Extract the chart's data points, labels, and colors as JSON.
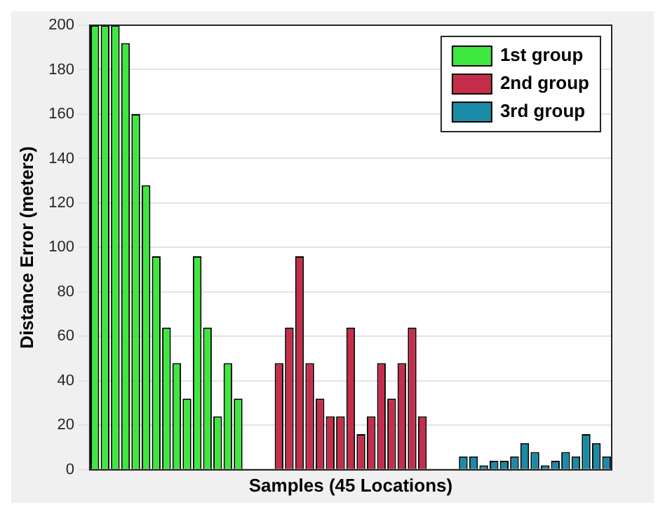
{
  "chart_data": {
    "type": "bar",
    "xlabel": "Samples (45 Locations)",
    "ylabel": "Distance Error (meters)",
    "categories": [
      null,
      null,
      null,
      null,
      null,
      null,
      null,
      null,
      null,
      null,
      null,
      null,
      null,
      null,
      null,
      null,
      null,
      null,
      null,
      null,
      null,
      null,
      null,
      null,
      null,
      null,
      null,
      null,
      null,
      null,
      null,
      null,
      null,
      null,
      null,
      null,
      null,
      null,
      null,
      null,
      null,
      null,
      null,
      null,
      null,
      null,
      null,
      null,
      null,
      null,
      null
    ],
    "series": [
      {
        "name": "1st group",
        "color": "#3ee83e",
        "values": [
          200,
          200,
          200,
          192,
          160,
          128,
          96,
          64,
          48,
          32,
          96,
          64,
          24,
          48,
          32,
          null,
          null,
          null,
          null,
          null,
          null,
          null,
          null,
          null,
          null,
          null,
          null,
          null,
          null,
          null,
          null,
          null,
          null,
          null,
          null,
          null,
          null,
          null,
          null,
          null,
          null,
          null,
          null,
          null,
          null,
          null,
          null,
          null,
          null,
          null,
          null
        ]
      },
      {
        "name": "2nd group",
        "color": "#c62d4b",
        "values": [
          null,
          null,
          null,
          null,
          null,
          null,
          null,
          null,
          null,
          null,
          null,
          null,
          null,
          null,
          null,
          null,
          null,
          null,
          48,
          64,
          96,
          48,
          32,
          24,
          24,
          64,
          16,
          24,
          48,
          32,
          48,
          64,
          24,
          null,
          null,
          null,
          null,
          null,
          null,
          null,
          null,
          null,
          null,
          null,
          null,
          null,
          null,
          null,
          null,
          null,
          null
        ]
      },
      {
        "name": "3rd group",
        "color": "#1a8ba6",
        "values": [
          null,
          null,
          null,
          null,
          null,
          null,
          null,
          null,
          null,
          null,
          null,
          null,
          null,
          null,
          null,
          null,
          null,
          null,
          null,
          null,
          null,
          null,
          null,
          null,
          null,
          null,
          null,
          null,
          null,
          null,
          null,
          null,
          null,
          null,
          null,
          null,
          6,
          6,
          2,
          4,
          4,
          6,
          12,
          8,
          2,
          4,
          8,
          6,
          16,
          12,
          6
        ]
      }
    ],
    "ylim": [
      0,
      200
    ],
    "yticks": [
      0,
      20,
      40,
      60,
      80,
      100,
      120,
      140,
      160,
      180,
      200
    ],
    "grid": "y",
    "legend": "top right"
  }
}
